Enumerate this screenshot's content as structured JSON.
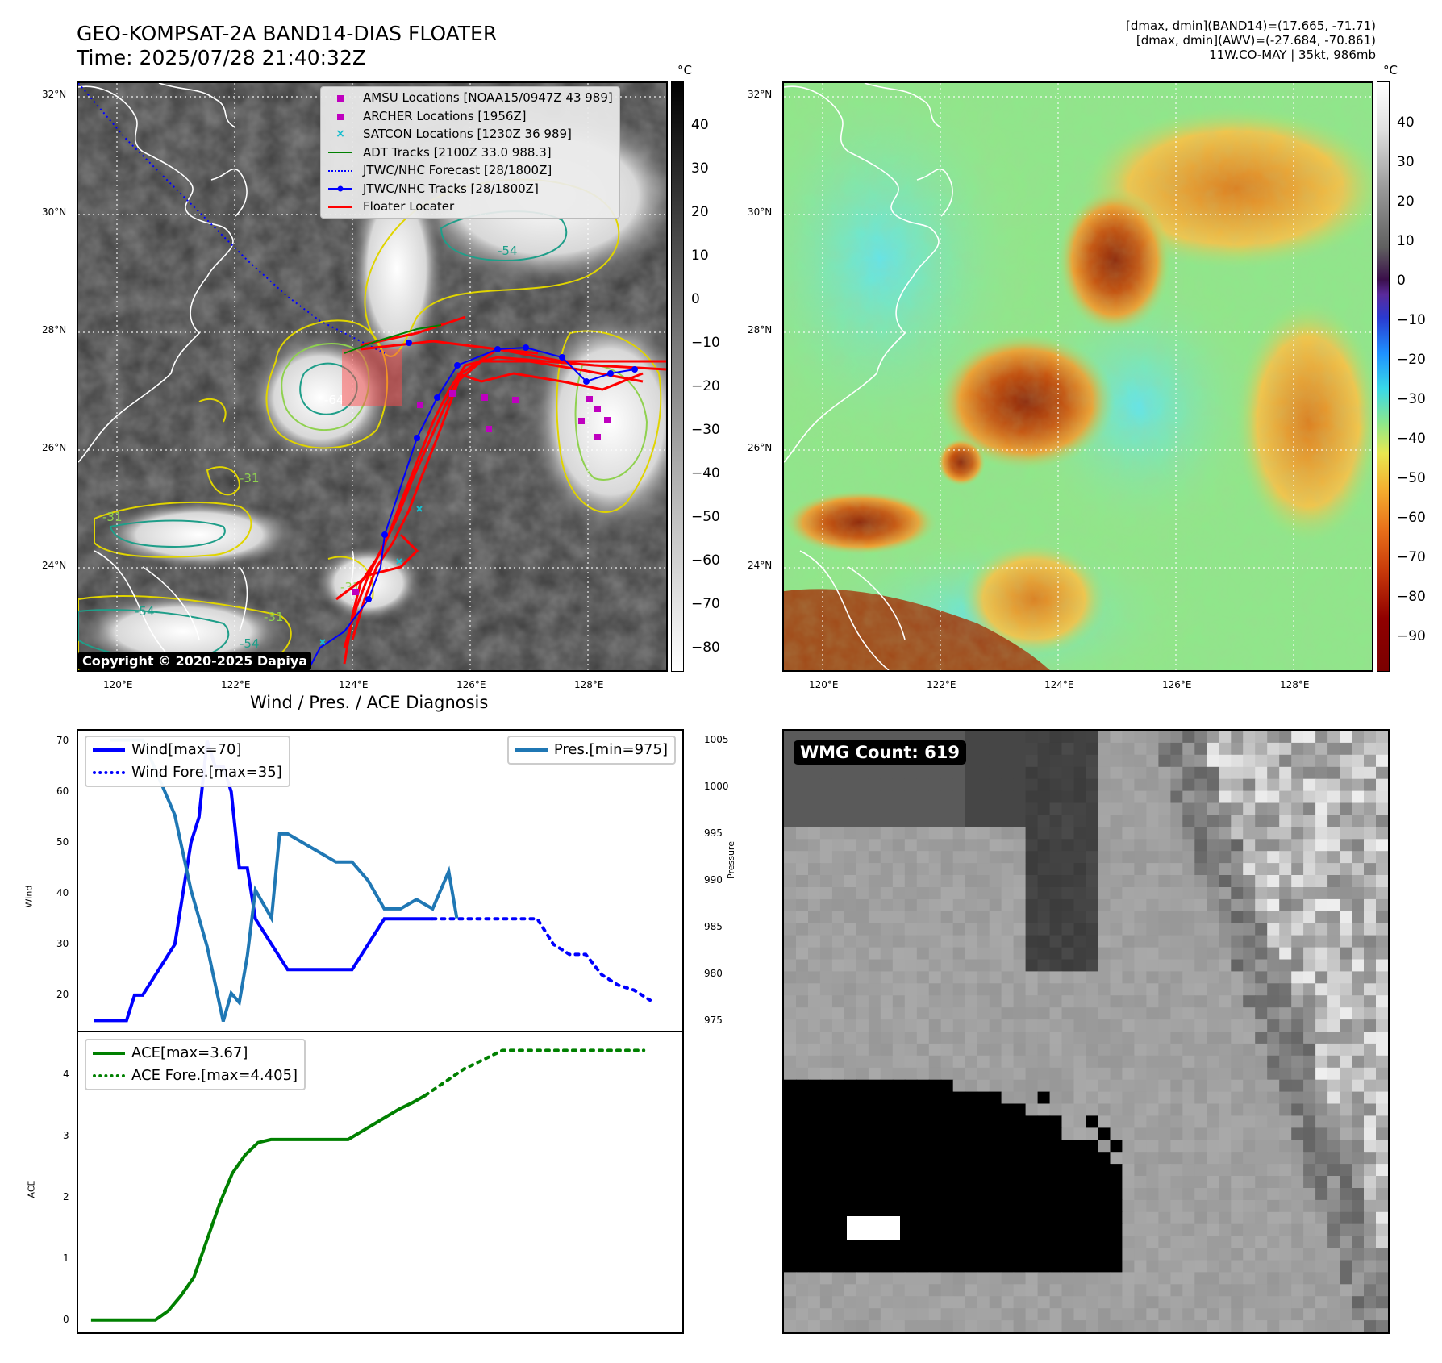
{
  "header": {
    "title_line1": "GEO-KOMPSAT-2A BAND14-DIAS FLOATER",
    "title_line2": "Time: 2025/07/28 21:40:32Z",
    "stats_line1": "[dmax, dmin](BAND14)=(17.665, -71.71)",
    "stats_line2": "[dmax, dmin](AWV)=(-27.684, -70.861)",
    "stats_line3": "11W.CO-MAY | 35kt, 986mb"
  },
  "map": {
    "lat_labels": [
      "32°N",
      "30°N",
      "28°N",
      "26°N",
      "24°N"
    ],
    "lon_labels": [
      "120°E",
      "122°E",
      "124°E",
      "126°E",
      "128°E"
    ],
    "contour_labels": [
      "-54",
      "-64",
      "-31",
      "-31",
      "-54",
      "-31",
      "-31",
      "-54"
    ],
    "copyright": "Copyright © 2020-2025 Dapiya",
    "legend": [
      {
        "label": "AMSU Locations [NOAA15/0947Z 43 989]",
        "symbol": "square",
        "color": "#bf00bf"
      },
      {
        "label": "ARCHER Locations [1956Z]",
        "symbol": "square",
        "color": "#bf00bf"
      },
      {
        "label": "SATCON Locations [1230Z 36 989]",
        "symbol": "x",
        "color": "#17becf"
      },
      {
        "label": "ADT Tracks [2100Z 33.0 988.3]",
        "symbol": "line",
        "color": "#008000"
      },
      {
        "label": "JTWC/NHC Forecast [28/1800Z]",
        "symbol": "dotted",
        "color": "#0000ff"
      },
      {
        "label": "JTWC/NHC Tracks [28/1800Z]",
        "symbol": "line-dot",
        "color": "#0000ff"
      },
      {
        "label": "Floater Locater",
        "symbol": "line",
        "color": "#ff0000"
      }
    ]
  },
  "colorbar_gray": {
    "unit": "°C",
    "ticks": [
      "40",
      "30",
      "20",
      "10",
      "0",
      "−10",
      "−20",
      "−30",
      "−40",
      "−50",
      "−60",
      "−70",
      "−80"
    ]
  },
  "colorbar_color": {
    "unit": "°C",
    "ticks": [
      "40",
      "30",
      "20",
      "10",
      "0",
      "−10",
      "−20",
      "−30",
      "−40",
      "−50",
      "−60",
      "−70",
      "−80",
      "−90"
    ]
  },
  "diagnosis": {
    "title": "Wind / Pres. / ACE Diagnosis",
    "wind_ylabel": "Wind",
    "pres_ylabel": "Pressure",
    "ace_ylabel": "ACE",
    "wind_ticks": [
      "70",
      "60",
      "50",
      "40",
      "30",
      "20"
    ],
    "pres_ticks": [
      "1005",
      "1000",
      "995",
      "990",
      "985",
      "980",
      "975"
    ],
    "ace_ticks": [
      "4",
      "3",
      "2",
      "1",
      "0"
    ],
    "legend_wind": "Wind[max=70]",
    "legend_wind_fore": "Wind Fore.[max=35]",
    "legend_pres": "Pres.[min=975]",
    "legend_ace": "ACE[max=3.67]",
    "legend_ace_fore": "ACE Fore.[max=4.405]",
    "wmg_count": "WMG Count: 619"
  },
  "chart_data": [
    {
      "type": "line",
      "title": "Wind / Pres. / ACE Diagnosis",
      "ylabel": "Wind",
      "ylim": [
        13,
        72
      ],
      "series": [
        {
          "name": "Wind[max=70]",
          "color": "#0000ff",
          "style": "solid",
          "x": [
            0,
            2,
            4,
            5,
            6,
            8,
            10,
            11,
            12,
            13,
            14,
            15,
            16,
            17,
            18,
            19,
            20,
            22,
            24,
            26,
            28,
            30,
            32,
            34,
            36,
            38,
            40,
            42
          ],
          "y": [
            15,
            15,
            15,
            20,
            20,
            25,
            30,
            40,
            50,
            55,
            70,
            65,
            65,
            60,
            45,
            45,
            35,
            30,
            25,
            25,
            25,
            25,
            25,
            30,
            35,
            35,
            35,
            35
          ]
        },
        {
          "name": "Wind Fore.[max=35]",
          "color": "#0000ff",
          "style": "dotted",
          "x": [
            42,
            45,
            48,
            50,
            52,
            54,
            55,
            57,
            59,
            61,
            63,
            65,
            67,
            69
          ],
          "y": [
            35,
            35,
            35,
            35,
            35,
            35,
            35,
            30,
            28,
            28,
            24,
            22,
            21,
            19
          ]
        }
      ]
    },
    {
      "type": "line",
      "ylabel": "Pressure",
      "ylim": [
        974,
        1006
      ],
      "series": [
        {
          "name": "Pres.[min=975]",
          "color": "#1f77b4",
          "style": "solid",
          "x": [
            2,
            3,
            6,
            8,
            10,
            12,
            14,
            16,
            17,
            18,
            19,
            20,
            22,
            23,
            24,
            26,
            28,
            30,
            32,
            34,
            36,
            38,
            40,
            42,
            44,
            45
          ],
          "y": [
            1005,
            1005,
            1005,
            1001,
            997,
            989,
            983,
            975,
            978,
            977,
            982,
            989,
            986,
            995,
            995,
            994,
            993,
            992,
            992,
            990,
            987,
            987,
            988,
            987,
            991,
            986
          ]
        }
      ]
    },
    {
      "type": "line",
      "ylabel": "ACE",
      "ylim": [
        -0.2,
        4.7
      ],
      "series": [
        {
          "name": "ACE[max=3.67]",
          "color": "#008000",
          "style": "solid",
          "x": [
            0,
            4,
            8,
            10,
            12,
            14,
            16,
            18,
            20,
            22,
            24,
            26,
            28,
            30,
            32,
            36,
            40,
            44,
            48,
            50,
            52
          ],
          "y": [
            0,
            0,
            0,
            0,
            0.15,
            0.4,
            0.7,
            1.3,
            1.9,
            2.4,
            2.7,
            2.9,
            2.95,
            2.95,
            2.95,
            2.95,
            2.95,
            3.2,
            3.45,
            3.55,
            3.67
          ]
        },
        {
          "name": "ACE Fore.[max=4.405]",
          "color": "#008000",
          "style": "dotted",
          "x": [
            52,
            58,
            64,
            70,
            76,
            82,
            86
          ],
          "y": [
            3.67,
            4.1,
            4.405,
            4.405,
            4.405,
            4.405,
            4.405
          ]
        }
      ]
    }
  ]
}
